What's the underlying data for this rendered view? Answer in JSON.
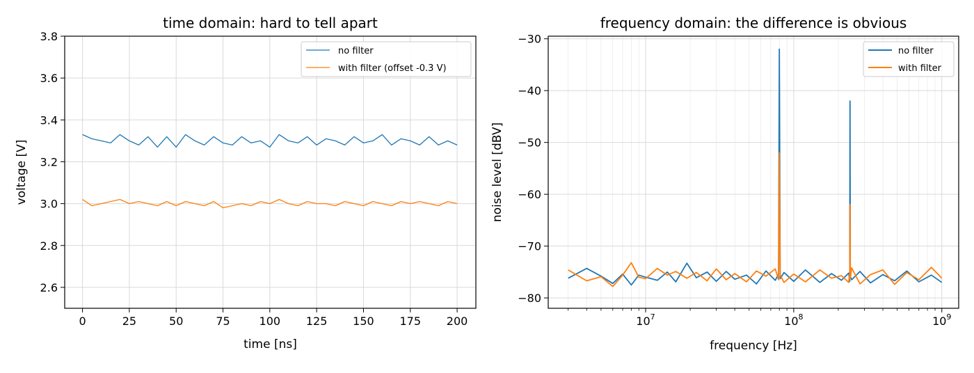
{
  "colors": {
    "series1": "#1f77b4",
    "series2": "#ff7f0e",
    "grid": "#d9d9d9",
    "axis": "#000000"
  },
  "chart_data": [
    {
      "type": "line",
      "title": "time domain: hard to tell apart",
      "xlabel": "time [ns]",
      "ylabel": "voltage [V]",
      "xlim": [
        -9.5,
        210
      ],
      "ylim": [
        2.5,
        3.8
      ],
      "xticks": [
        0,
        25,
        50,
        75,
        100,
        125,
        150,
        175,
        200
      ],
      "xtick_labels": [
        "0",
        "25",
        "50",
        "75",
        "100",
        "125",
        "150",
        "175",
        "200"
      ],
      "yticks": [
        2.6,
        2.8,
        3.0,
        3.2,
        3.4,
        3.6,
        3.8
      ],
      "ytick_labels": [
        "2.6",
        "2.8",
        "3.0",
        "3.2",
        "3.4",
        "3.6",
        "3.8"
      ],
      "grid": true,
      "legend_position": "top-right",
      "series": [
        {
          "name": "no filter",
          "x": [
            0,
            5,
            10,
            15,
            20,
            25,
            30,
            35,
            40,
            45,
            50,
            55,
            60,
            65,
            70,
            75,
            80,
            85,
            90,
            95,
            100,
            105,
            110,
            115,
            120,
            125,
            130,
            135,
            140,
            145,
            150,
            155,
            160,
            165,
            170,
            175,
            180,
            185,
            190,
            195,
            200
          ],
          "y": [
            3.33,
            3.31,
            3.3,
            3.29,
            3.33,
            3.3,
            3.28,
            3.32,
            3.27,
            3.32,
            3.27,
            3.33,
            3.3,
            3.28,
            3.32,
            3.29,
            3.28,
            3.32,
            3.29,
            3.3,
            3.27,
            3.33,
            3.3,
            3.29,
            3.32,
            3.28,
            3.31,
            3.3,
            3.28,
            3.32,
            3.29,
            3.3,
            3.33,
            3.28,
            3.31,
            3.3,
            3.28,
            3.32,
            3.28,
            3.3,
            3.28
          ]
        },
        {
          "name": "with filter (offset -0.3 V)",
          "x": [
            0,
            5,
            10,
            15,
            20,
            25,
            30,
            35,
            40,
            45,
            50,
            55,
            60,
            65,
            70,
            75,
            80,
            85,
            90,
            95,
            100,
            105,
            110,
            115,
            120,
            125,
            130,
            135,
            140,
            145,
            150,
            155,
            160,
            165,
            170,
            175,
            180,
            185,
            190,
            195,
            200
          ],
          "y": [
            3.02,
            2.99,
            3.0,
            3.01,
            3.02,
            3.0,
            3.01,
            3.0,
            2.99,
            3.01,
            2.99,
            3.01,
            3.0,
            2.99,
            3.01,
            2.98,
            2.99,
            3.0,
            2.99,
            3.01,
            3.0,
            3.02,
            3.0,
            2.99,
            3.01,
            3.0,
            3.0,
            2.99,
            3.01,
            3.0,
            2.99,
            3.01,
            3.0,
            2.99,
            3.01,
            3.0,
            3.01,
            3.0,
            2.99,
            3.01,
            3.0
          ]
        }
      ]
    },
    {
      "type": "line",
      "title": "frequency domain: the difference is obvious",
      "xlabel": "frequency [Hz]",
      "ylabel": "noise level [dBV]",
      "xscale": "log",
      "xlim": [
        2200000,
        1300000000
      ],
      "ylim": [
        -82,
        -29.5
      ],
      "xticks": [
        10000000,
        100000000,
        1000000000
      ],
      "xtick_labels": [
        "10",
        "10",
        "10"
      ],
      "xtick_exponents": [
        "7",
        "8",
        "9"
      ],
      "yticks": [
        -80,
        -70,
        -60,
        -50,
        -40,
        -30
      ],
      "ytick_labels": [
        "−80",
        "−70",
        "−60",
        "−50",
        "−40",
        "−30"
      ],
      "grid": true,
      "legend_position": "top-right",
      "series": [
        {
          "name": "no filter",
          "x": [
            3000000,
            4000000,
            5000000,
            6000000,
            7000000,
            8000000,
            9000000,
            10000000,
            12000000,
            14000000,
            16000000,
            19000000,
            22000000,
            26000000,
            30000000,
            35000000,
            40000000,
            48000000,
            56000000,
            65000000,
            75000000,
            79000000,
            80000000,
            81000000,
            86000000,
            100000000,
            120000000,
            150000000,
            180000000,
            210000000,
            235000000,
            239000000,
            240000000,
            241000000,
            246000000,
            280000000,
            330000000,
            400000000,
            480000000,
            580000000,
            700000000,
            850000000,
            1000000000
          ],
          "y": [
            -76.2,
            -74.3,
            -75.8,
            -77.2,
            -75.4,
            -77.5,
            -75.6,
            -76.0,
            -76.6,
            -75.0,
            -76.9,
            -73.3,
            -76.1,
            -75.0,
            -76.8,
            -74.9,
            -76.4,
            -75.6,
            -77.3,
            -74.8,
            -76.6,
            -75.4,
            -32.0,
            -76.3,
            -75.1,
            -76.8,
            -74.6,
            -77.0,
            -75.3,
            -76.6,
            -75.2,
            -76.8,
            -42.0,
            -75.8,
            -76.5,
            -74.9,
            -77.1,
            -75.5,
            -76.7,
            -74.8,
            -76.9,
            -75.6,
            -77.0
          ]
        },
        {
          "name": "with filter",
          "x": [
            3000000,
            4000000,
            5000000,
            6000000,
            7000000,
            8000000,
            9000000,
            10000000,
            12000000,
            14000000,
            16000000,
            19000000,
            22000000,
            26000000,
            30000000,
            35000000,
            40000000,
            48000000,
            56000000,
            65000000,
            75000000,
            79000000,
            80000000,
            81000000,
            86000000,
            100000000,
            120000000,
            150000000,
            180000000,
            210000000,
            235000000,
            239000000,
            240000000,
            241000000,
            246000000,
            280000000,
            330000000,
            400000000,
            480000000,
            580000000,
            700000000,
            850000000,
            1000000000
          ],
          "y": [
            -74.6,
            -76.7,
            -75.9,
            -77.8,
            -75.6,
            -73.2,
            -76.0,
            -76.3,
            -74.3,
            -75.6,
            -74.9,
            -76.2,
            -75.1,
            -76.7,
            -74.4,
            -76.5,
            -75.3,
            -76.9,
            -74.8,
            -75.8,
            -74.4,
            -76.5,
            -52.0,
            -75.6,
            -77.0,
            -75.4,
            -76.9,
            -74.6,
            -76.2,
            -75.7,
            -77.0,
            -75.2,
            -62.0,
            -76.3,
            -74.2,
            -77.3,
            -75.5,
            -74.6,
            -77.4,
            -75.1,
            -76.5,
            -74.1,
            -76.2
          ]
        }
      ]
    }
  ]
}
